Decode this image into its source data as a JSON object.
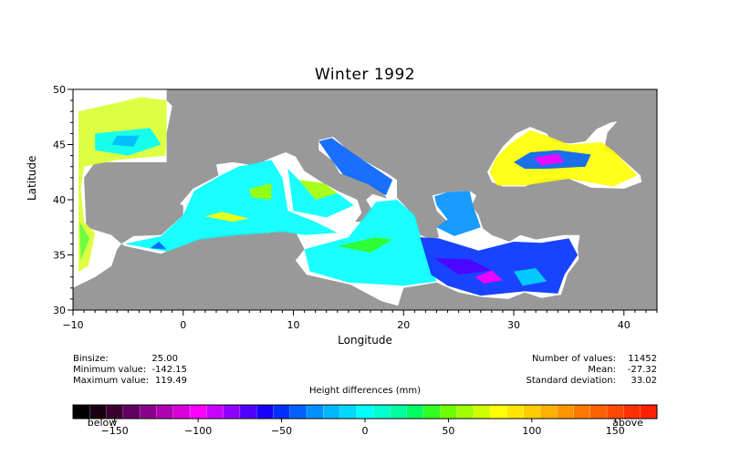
{
  "title": "Winter 1992",
  "axes": {
    "xlabel": "Longitude",
    "ylabel": "Latitude",
    "x_range": [
      -10,
      43
    ],
    "y_range": [
      30,
      50
    ],
    "x_ticks": [
      "-10",
      "0",
      "10",
      "20",
      "30",
      "40"
    ],
    "y_ticks": [
      "30",
      "35",
      "40",
      "45",
      "50"
    ]
  },
  "stats_left": {
    "binsize_label": "Binsize:",
    "binsize_value": "25.00",
    "min_label": "Minimum value:",
    "min_value": "-142.15",
    "max_label": "Maximum value:",
    "max_value": "119.49"
  },
  "stats_right": {
    "count_label": "Number of values:",
    "count_value": "11452",
    "mean_label": "Mean:",
    "mean_value": "-27.32",
    "std_label": "Standard deviation:",
    "std_value": "33.02"
  },
  "colorbar": {
    "title": "Height differences (mm)",
    "range": [
      -175,
      175
    ],
    "ticks": [
      "-150",
      "-100",
      "-50",
      "0",
      "50",
      "100",
      "150"
    ],
    "below_label": "below",
    "above_label": "above",
    "colors": [
      "#000000",
      "#1a0010",
      "#3a0030",
      "#600060",
      "#8a008a",
      "#b000b0",
      "#d800d8",
      "#ff00ff",
      "#c800ff",
      "#9000ff",
      "#5000ff",
      "#1800ff",
      "#0030ff",
      "#0060ff",
      "#0090ff",
      "#00b8ff",
      "#00d8ff",
      "#00ffff",
      "#00ffd0",
      "#00ffa0",
      "#00ff60",
      "#30ff20",
      "#70ff00",
      "#a0ff00",
      "#d0ff00",
      "#ffff00",
      "#ffe600",
      "#ffcc00",
      "#ffb000",
      "#ff9600",
      "#ff7a00",
      "#ff6000",
      "#ff4800",
      "#ff3000",
      "#ff2000"
    ]
  },
  "map_colors": {
    "land": "#999999",
    "ocean": "#ffffff"
  }
}
